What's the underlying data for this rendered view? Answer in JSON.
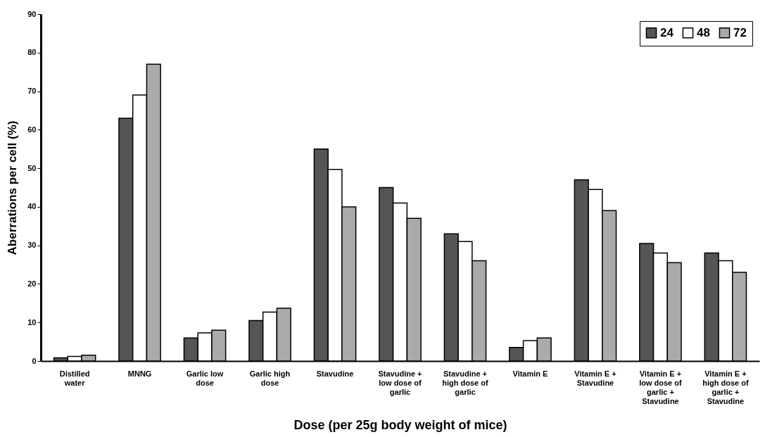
{
  "chart_data": {
    "type": "bar",
    "xlabel": "Dose (per 25g body weight of mice)",
    "ylabel": "Aberrations per cell (%)",
    "categories": [
      "Distilled water",
      "MNNG",
      "Garlic low dose",
      "Garlic high dose",
      "Stavudine",
      "Stavudine + low dose of garlic",
      "Stavudine + high dose of garlic",
      "Vitamin E",
      "Vitamin E + Stavudine",
      "Vitamin E + low dose of garlic + Stavudine",
      "Vitamin E + high dose of garlic + Stavudine"
    ],
    "series": [
      {
        "name": "24",
        "color": "#555555",
        "values": [
          0.8,
          63,
          6,
          10.5,
          55,
          45,
          33,
          3.5,
          47,
          30.5,
          28
        ]
      },
      {
        "name": "48",
        "color": "#ffffff",
        "values": [
          1.2,
          69,
          7.3,
          12.7,
          49.7,
          41,
          31,
          5.3,
          44.5,
          28,
          26
        ]
      },
      {
        "name": "72",
        "color": "#aaaaaa",
        "values": [
          1.5,
          77,
          8,
          13.7,
          40,
          37,
          26,
          6,
          39,
          25.5,
          23
        ]
      }
    ],
    "ylim": [
      0,
      90
    ],
    "yticks": [
      0,
      10,
      20,
      30,
      40,
      50,
      60,
      70,
      80,
      90
    ],
    "grid": false,
    "legend": "top right"
  }
}
